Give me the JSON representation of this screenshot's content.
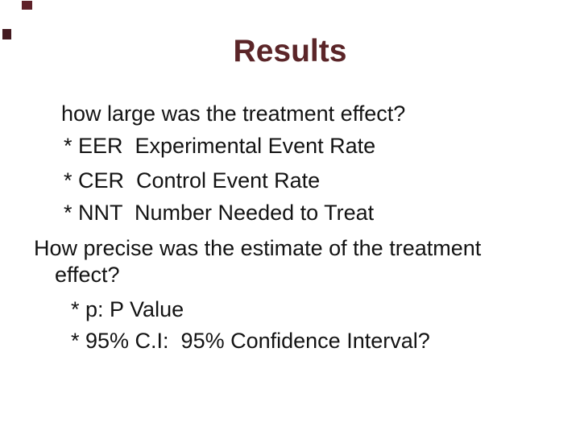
{
  "slide": {
    "title": "Results",
    "body_lines": [
      "how large was the treatment effect?",
      "* EER  Experimental Event Rate",
      "* CER  Control Event Rate",
      "* NNT  Number Needed to Treat",
      "How precise was the estimate of the treatment",
      "effect?",
      "* p: P Value",
      "* 95% C.I:  95% Confidence Interval?"
    ],
    "colors": {
      "background": "#ffffff",
      "title_text": "#5b2528",
      "body_text": "#131313",
      "decor_square_top": "#5e2129",
      "decor_square_left": "#441a20"
    }
  }
}
